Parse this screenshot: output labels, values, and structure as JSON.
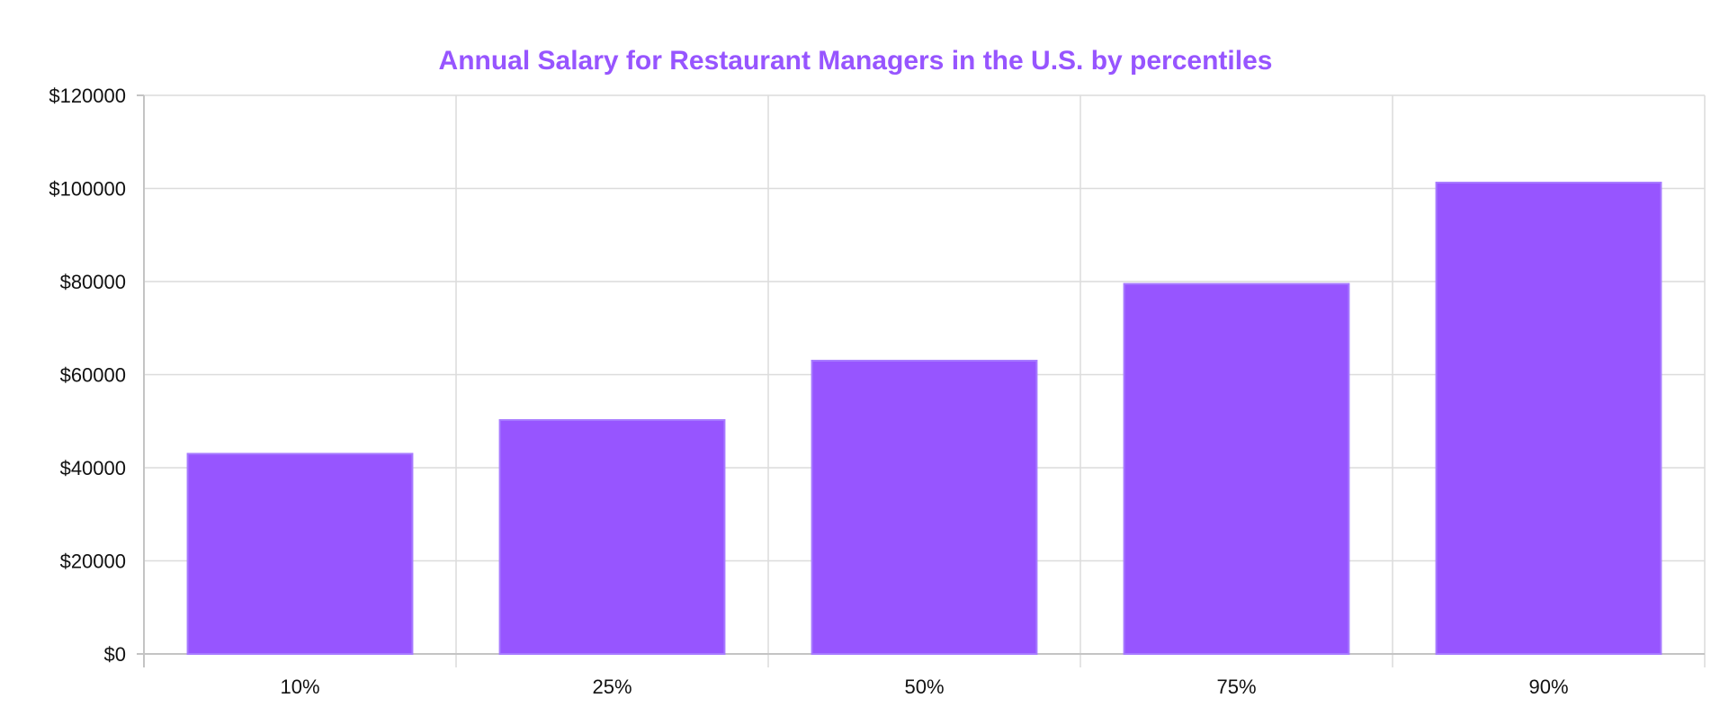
{
  "chart_data": {
    "type": "bar",
    "title": "Annual Salary for Restaurant Managers in the U.S. by percentiles",
    "categories": [
      "10%",
      "25%",
      "50%",
      "75%",
      "90%"
    ],
    "values": [
      43000,
      50250,
      63000,
      79500,
      101250
    ],
    "ylim": [
      0,
      120000
    ],
    "yticks": [
      0,
      20000,
      40000,
      60000,
      80000,
      100000,
      120000
    ],
    "ytick_labels": [
      "$0",
      "$20000",
      "$40000",
      "$60000",
      "$80000",
      "$100000",
      "$120000"
    ],
    "xlabel": "",
    "ylabel": "",
    "grid": true,
    "legend": "none",
    "colors": {
      "bar_fill": "#9755ff",
      "bar_stroke": "#a77bff",
      "title": "#9755ff",
      "grid": "#dcdcdc",
      "axis": "#c4c4c4"
    }
  }
}
